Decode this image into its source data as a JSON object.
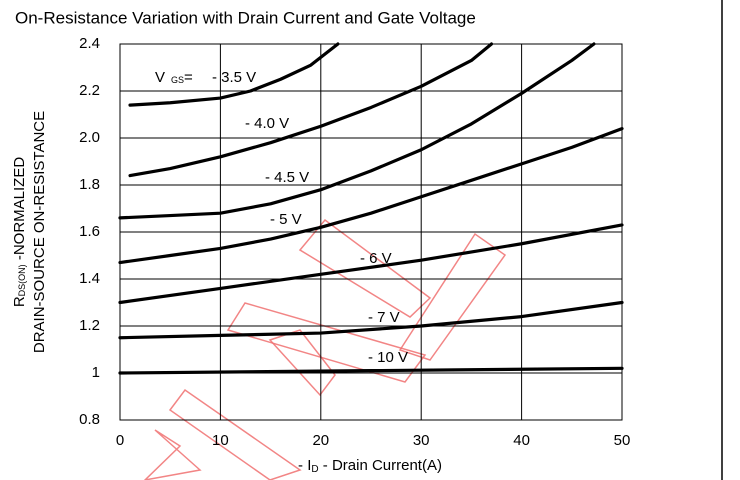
{
  "chart_data": {
    "type": "line",
    "title": "On-Resistance Variation with Drain Current and Gate Voltage",
    "x_label": {
      "prefix": "- I",
      "subscript": "D",
      "rest": " - Drain Current(A)"
    },
    "y_label": {
      "line1_prefix": "R",
      "line1_subscript": "DS(ON)",
      "line1_rest": " -NORMALIZED",
      "line2": "DRAIN-SOURCE ON-RESISTANCE"
    },
    "legend_prefix": {
      "symbol": "V",
      "subscript": "GS",
      "equals": "="
    },
    "xlim": [
      0,
      50
    ],
    "xticks": [
      0,
      10,
      20,
      30,
      40,
      50
    ],
    "ylim": [
      0.8,
      2.4
    ],
    "yticks": [
      0.8,
      1,
      1.2,
      1.4,
      1.6,
      1.8,
      {
        "value": 2.0,
        "label": "2.0"
      },
      2.2,
      2.4
    ],
    "grid": true,
    "series": [
      {
        "name": "- 3.5 V",
        "color": "#000000",
        "x": [
          1,
          5,
          10,
          13,
          16,
          19,
          21.7
        ],
        "values": [
          2.14,
          2.15,
          2.17,
          2.2,
          2.25,
          2.31,
          2.4
        ]
      },
      {
        "name": "- 4.0 V",
        "color": "#000000",
        "x": [
          1,
          5,
          10,
          15,
          20,
          25,
          30,
          35,
          37
        ],
        "values": [
          1.84,
          1.87,
          1.92,
          1.98,
          2.05,
          2.13,
          2.22,
          2.33,
          2.4
        ]
      },
      {
        "name": "- 4.5 V",
        "color": "#000000",
        "x": [
          0,
          5,
          10,
          15,
          20,
          25,
          30,
          35,
          40,
          45,
          47.2
        ],
        "values": [
          1.66,
          1.67,
          1.68,
          1.72,
          1.78,
          1.86,
          1.95,
          2.06,
          2.19,
          2.33,
          2.4
        ]
      },
      {
        "name": "- 5 V",
        "color": "#000000",
        "x": [
          0,
          5,
          10,
          15,
          20,
          25,
          30,
          35,
          40,
          45,
          50
        ],
        "values": [
          1.47,
          1.5,
          1.53,
          1.57,
          1.62,
          1.68,
          1.75,
          1.82,
          1.89,
          1.96,
          2.04
        ]
      },
      {
        "name": "- 6 V",
        "color": "#000000",
        "x": [
          0,
          10,
          20,
          30,
          40,
          50
        ],
        "values": [
          1.3,
          1.36,
          1.42,
          1.48,
          1.55,
          1.63
        ]
      },
      {
        "name": "- 7 V",
        "color": "#000000",
        "x": [
          0,
          10,
          20,
          30,
          40,
          50
        ],
        "values": [
          1.15,
          1.16,
          1.17,
          1.2,
          1.24,
          1.3
        ]
      },
      {
        "name": "- 10 V",
        "color": "#000000",
        "x": [
          0,
          25,
          50
        ],
        "values": [
          1.0,
          1.01,
          1.02
        ]
      }
    ]
  }
}
